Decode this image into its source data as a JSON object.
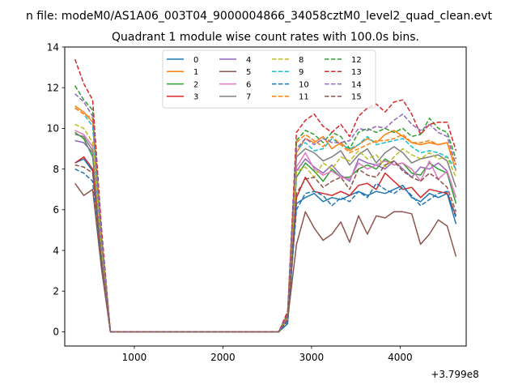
{
  "figure": {
    "suptitle": "n file: modeM0/AS1A06_003T04_9000004866_34058cztM0_level2_quad_clean.evt",
    "title": "Quadrant 1 module wise count rates with 100.0s bins.",
    "x_offset_label": "+3.799e8"
  },
  "chart_data": {
    "type": "line",
    "title": "Quadrant 1 module wise count rates with 100.0s bins.",
    "xlabel": "",
    "ylabel": "",
    "x_offset": 379900000,
    "xlim": [
      215,
      4745
    ],
    "ylim": [
      -0.7,
      14
    ],
    "xticks": [
      1000,
      2000,
      3000,
      4000
    ],
    "yticks": [
      0,
      2,
      4,
      6,
      8,
      10,
      12,
      14
    ],
    "grid": false,
    "legend": {
      "position": "top-center",
      "columns": 4
    },
    "x": [
      330,
      430,
      530,
      630,
      730,
      830,
      930,
      1030,
      1130,
      1230,
      1330,
      1430,
      1530,
      1630,
      1730,
      1830,
      1930,
      2030,
      2130,
      2230,
      2330,
      2430,
      2530,
      2630,
      2730,
      2830,
      2930,
      3030,
      3130,
      3230,
      3330,
      3430,
      3530,
      3630,
      3730,
      3830,
      3930,
      4030,
      4130,
      4230,
      4330,
      4430,
      4530,
      4630
    ],
    "series": [
      {
        "name": "0",
        "color": "#1f77b4",
        "dash": false,
        "values": [
          8.3,
          8.5,
          7.9,
          3.5,
          0,
          0,
          0,
          0,
          0,
          0,
          0,
          0,
          0,
          0,
          0,
          0,
          0,
          0,
          0,
          0,
          0,
          0,
          0,
          0,
          0.4,
          6.3,
          6.6,
          6.8,
          6.4,
          6.6,
          6.5,
          6.7,
          6.9,
          6.7,
          6.9,
          6.8,
          7.0,
          7.2,
          6.6,
          6.4,
          6.8,
          6.6,
          6.8,
          5.3
        ]
      },
      {
        "name": "1",
        "color": "#ff7f0e",
        "dash": false,
        "values": [
          11.1,
          10.8,
          10.3,
          4.4,
          0,
          0,
          0,
          0,
          0,
          0,
          0,
          0,
          0,
          0,
          0,
          0,
          0,
          0,
          0,
          0,
          0,
          0,
          0,
          0,
          0.9,
          8.8,
          9.5,
          9.3,
          9.6,
          9.0,
          9.3,
          8.9,
          9.2,
          9.5,
          9.3,
          9.7,
          9.9,
          9.6,
          9.3,
          9.2,
          9.3,
          9.2,
          9.3,
          7.9
        ]
      },
      {
        "name": "2",
        "color": "#2ca02c",
        "dash": false,
        "values": [
          9.8,
          9.5,
          8.6,
          4.0,
          0,
          0,
          0,
          0,
          0,
          0,
          0,
          0,
          0,
          0,
          0,
          0,
          0,
          0,
          0,
          0,
          0,
          0,
          0,
          0,
          0.6,
          7.6,
          8.3,
          7.9,
          7.4,
          8.0,
          7.6,
          7.6,
          8.0,
          8.2,
          8.0,
          8.5,
          8.2,
          8.3,
          7.8,
          7.7,
          8.3,
          8.0,
          7.8,
          6.3
        ]
      },
      {
        "name": "3",
        "color": "#d62728",
        "dash": false,
        "values": [
          8.3,
          8.6,
          8.0,
          3.7,
          0,
          0,
          0,
          0,
          0,
          0,
          0,
          0,
          0,
          0,
          0,
          0,
          0,
          0,
          0,
          0,
          0,
          0,
          0,
          0,
          0.6,
          6.6,
          7.6,
          6.9,
          6.8,
          6.7,
          6.9,
          6.7,
          7.2,
          7.3,
          7.0,
          7.8,
          7.4,
          7.0,
          7.1,
          6.6,
          7.0,
          6.9,
          6.8,
          5.7
        ]
      },
      {
        "name": "4",
        "color": "#9467bd",
        "dash": false,
        "values": [
          9.4,
          9.3,
          8.8,
          3.8,
          0,
          0,
          0,
          0,
          0,
          0,
          0,
          0,
          0,
          0,
          0,
          0,
          0,
          0,
          0,
          0,
          0,
          0,
          0,
          0,
          0.7,
          7.9,
          8.5,
          8.1,
          7.8,
          8.2,
          7.7,
          7.4,
          8.5,
          8.3,
          8.2,
          8.0,
          8.4,
          8.0,
          7.6,
          8.1,
          8.0,
          8.3,
          7.9,
          6.6
        ]
      },
      {
        "name": "5",
        "color": "#8c564b",
        "dash": false,
        "values": [
          7.3,
          6.7,
          7.0,
          3.1,
          0,
          0,
          0,
          0,
          0,
          0,
          0,
          0,
          0,
          0,
          0,
          0,
          0,
          0,
          0,
          0,
          0,
          0,
          0,
          0,
          0.6,
          4.3,
          5.9,
          5.1,
          4.5,
          4.8,
          5.4,
          4.4,
          5.7,
          4.8,
          5.7,
          5.6,
          5.9,
          5.9,
          5.8,
          4.3,
          4.8,
          5.5,
          5.2,
          3.7
        ]
      },
      {
        "name": "6",
        "color": "#e377c2",
        "dash": false,
        "values": [
          9.9,
          9.7,
          9.1,
          4.1,
          0,
          0,
          0,
          0,
          0,
          0,
          0,
          0,
          0,
          0,
          0,
          0,
          0,
          0,
          0,
          0,
          0,
          0,
          0,
          0,
          0.8,
          8.1,
          8.8,
          8.0,
          7.7,
          7.9,
          7.6,
          7.5,
          8.3,
          8.0,
          8.2,
          8.4,
          8.2,
          8.3,
          8.0,
          7.4,
          8.4,
          7.5,
          7.9,
          6.6
        ]
      },
      {
        "name": "7",
        "color": "#7f7f7f",
        "dash": false,
        "values": [
          9.7,
          9.6,
          8.9,
          4.0,
          0,
          0,
          0,
          0,
          0,
          0,
          0,
          0,
          0,
          0,
          0,
          0,
          0,
          0,
          0,
          0,
          0,
          0,
          0,
          0,
          0.8,
          8.6,
          9.0,
          8.8,
          8.4,
          8.6,
          8.9,
          8.2,
          8.7,
          9.0,
          8.3,
          8.8,
          9.1,
          8.8,
          8.3,
          8.5,
          8.6,
          8.7,
          8.4,
          7.1
        ]
      },
      {
        "name": "8",
        "color": "#bcbd22",
        "dash": true,
        "values": [
          10.2,
          10.0,
          9.3,
          4.2,
          0,
          0,
          0,
          0,
          0,
          0,
          0,
          0,
          0,
          0,
          0,
          0,
          0,
          0,
          0,
          0,
          0,
          0,
          0,
          0,
          0.6,
          7.9,
          8.1,
          7.6,
          8.3,
          8.0,
          8.6,
          8.4,
          8.9,
          8.5,
          8.7,
          8.1,
          8.6,
          9.0,
          8.7,
          8.5,
          8.8,
          8.5,
          8.6,
          7.6
        ]
      },
      {
        "name": "9",
        "color": "#17becf",
        "dash": true,
        "values": [
          11.0,
          10.7,
          10.1,
          4.5,
          0,
          0,
          0,
          0,
          0,
          0,
          0,
          0,
          0,
          0,
          0,
          0,
          0,
          0,
          0,
          0,
          0,
          0,
          0,
          0,
          0.8,
          9.0,
          9.3,
          8.9,
          9.0,
          9.5,
          9.2,
          9.0,
          9.2,
          9.6,
          9.2,
          9.3,
          9.4,
          9.5,
          9.1,
          8.8,
          8.9,
          8.8,
          8.6,
          8.0
        ]
      },
      {
        "name": "10",
        "color": "#1f77b4",
        "dash": true,
        "values": [
          8.0,
          7.8,
          7.4,
          3.4,
          0,
          0,
          0,
          0,
          0,
          0,
          0,
          0,
          0,
          0,
          0,
          0,
          0,
          0,
          0,
          0,
          0,
          0,
          0,
          0,
          0.5,
          6.0,
          6.8,
          6.9,
          6.7,
          6.2,
          6.6,
          6.4,
          6.9,
          6.6,
          7.3,
          7.0,
          6.8,
          7.1,
          6.7,
          6.2,
          6.5,
          6.8,
          6.9,
          5.6
        ]
      },
      {
        "name": "11",
        "color": "#ff7f0e",
        "dash": true,
        "values": [
          11.0,
          10.7,
          10.5,
          4.6,
          0,
          0,
          0,
          0,
          0,
          0,
          0,
          0,
          0,
          0,
          0,
          0,
          0,
          0,
          0,
          0,
          0,
          0,
          0,
          0,
          0.8,
          9.3,
          9.7,
          9.4,
          9.1,
          9.6,
          9.2,
          8.8,
          9.0,
          9.2,
          9.4,
          9.4,
          9.5,
          9.7,
          9.3,
          9.3,
          9.4,
          9.2,
          9.3,
          8.2
        ]
      },
      {
        "name": "12",
        "color": "#2ca02c",
        "dash": true,
        "values": [
          12.1,
          11.4,
          10.9,
          4.8,
          0,
          0,
          0,
          0,
          0,
          0,
          0,
          0,
          0,
          0,
          0,
          0,
          0,
          0,
          0,
          0,
          0,
          0,
          0,
          0,
          0.9,
          9.4,
          9.9,
          9.7,
          9.3,
          9.8,
          9.6,
          9.0,
          9.8,
          10.0,
          9.8,
          10.0,
          9.8,
          10.0,
          9.6,
          9.7,
          10.5,
          10.0,
          9.8,
          8.5
        ]
      },
      {
        "name": "13",
        "color": "#d62728",
        "dash": true,
        "values": [
          13.4,
          12.2,
          11.4,
          5.1,
          0,
          0,
          0,
          0,
          0,
          0,
          0,
          0,
          0,
          0,
          0,
          0,
          0,
          0,
          0,
          0,
          0,
          0,
          0,
          0,
          1.0,
          9.8,
          10.4,
          10.7,
          10.1,
          9.8,
          10.2,
          9.6,
          10.6,
          11.0,
          11.2,
          10.8,
          11.3,
          11.4,
          10.7,
          9.7,
          10.2,
          10.3,
          10.3,
          8.9
        ]
      },
      {
        "name": "14",
        "color": "#9467bd",
        "dash": true,
        "values": [
          11.7,
          11.3,
          10.6,
          4.7,
          0,
          0,
          0,
          0,
          0,
          0,
          0,
          0,
          0,
          0,
          0,
          0,
          0,
          0,
          0,
          0,
          0,
          0,
          0,
          0,
          0.8,
          9.0,
          9.5,
          9.2,
          9.5,
          9.3,
          9.3,
          9.4,
          10.0,
          9.9,
          10.1,
          10.0,
          10.4,
          10.7,
          10.2,
          9.9,
          10.2,
          9.8,
          9.6,
          8.2
        ]
      },
      {
        "name": "15",
        "color": "#8c564b",
        "dash": true,
        "values": [
          8.2,
          8.1,
          7.8,
          3.5,
          0,
          0,
          0,
          0,
          0,
          0,
          0,
          0,
          0,
          0,
          0,
          0,
          0,
          0,
          0,
          0,
          0,
          0,
          0,
          0,
          0.6,
          6.8,
          7.5,
          7.6,
          7.1,
          7.4,
          7.6,
          7.0,
          8.0,
          7.7,
          7.6,
          8.2,
          8.4,
          7.9,
          7.6,
          7.4,
          7.8,
          7.5,
          7.1,
          5.9
        ]
      }
    ]
  }
}
